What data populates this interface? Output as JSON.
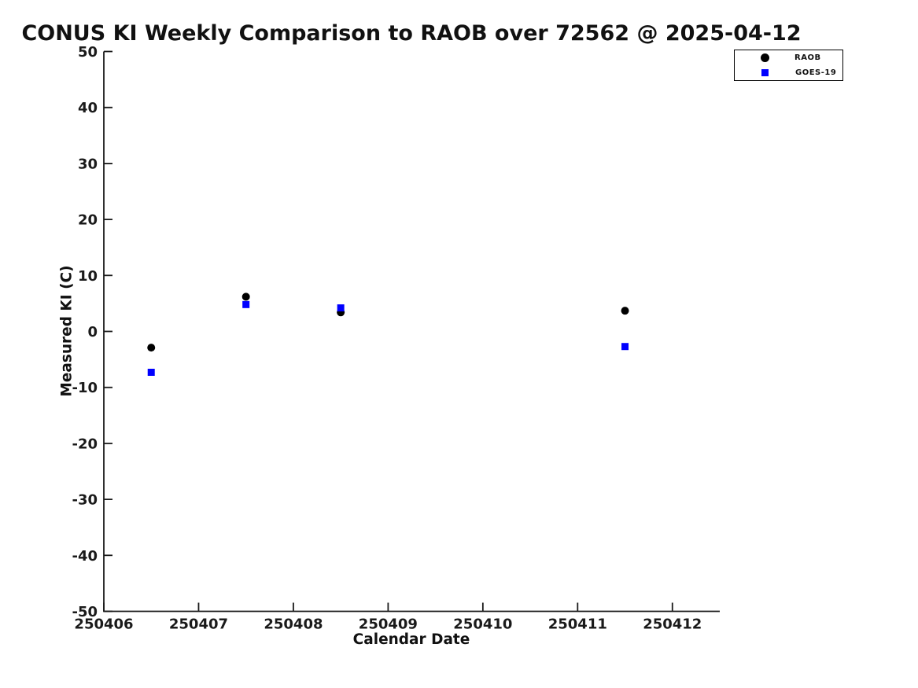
{
  "title": "CONUS KI Weekly Comparison to RAOB over 72562 @ 2025-04-12",
  "colors": {
    "raob": "#000000",
    "goes19": "#0000ff",
    "axis": "#1a1a1a",
    "background": "#ffffff"
  },
  "legend": {
    "position": "top-right",
    "entries": [
      "RAOB",
      "GOES-19"
    ]
  },
  "chart_data": {
    "type": "scatter",
    "title": "CONUS KI Weekly Comparison to RAOB over 72562 @ 2025-04-12",
    "xlabel": "Calendar Date",
    "ylabel": "Measured KI (C)",
    "xlim": [
      250406,
      250412.5
    ],
    "ylim": [
      -50,
      50
    ],
    "xticks": [
      250406,
      250407,
      250408,
      250409,
      250410,
      250411,
      250412
    ],
    "yticks": [
      -50,
      -40,
      -30,
      -20,
      -10,
      0,
      10,
      20,
      30,
      40,
      50
    ],
    "grid": false,
    "legend_position": "top-right",
    "series": [
      {
        "name": "RAOB",
        "marker": "circle",
        "color": "#000000",
        "points": [
          [
            250406.5,
            -2.9
          ],
          [
            250407.5,
            6.2
          ],
          [
            250408.5,
            3.4
          ],
          [
            250411.5,
            3.7
          ]
        ]
      },
      {
        "name": "GOES-19",
        "marker": "square",
        "color": "#0000ff",
        "points": [
          [
            250406.5,
            -7.3
          ],
          [
            250407.5,
            4.8
          ],
          [
            250408.5,
            4.2
          ],
          [
            250411.5,
            -2.7
          ]
        ]
      }
    ]
  }
}
